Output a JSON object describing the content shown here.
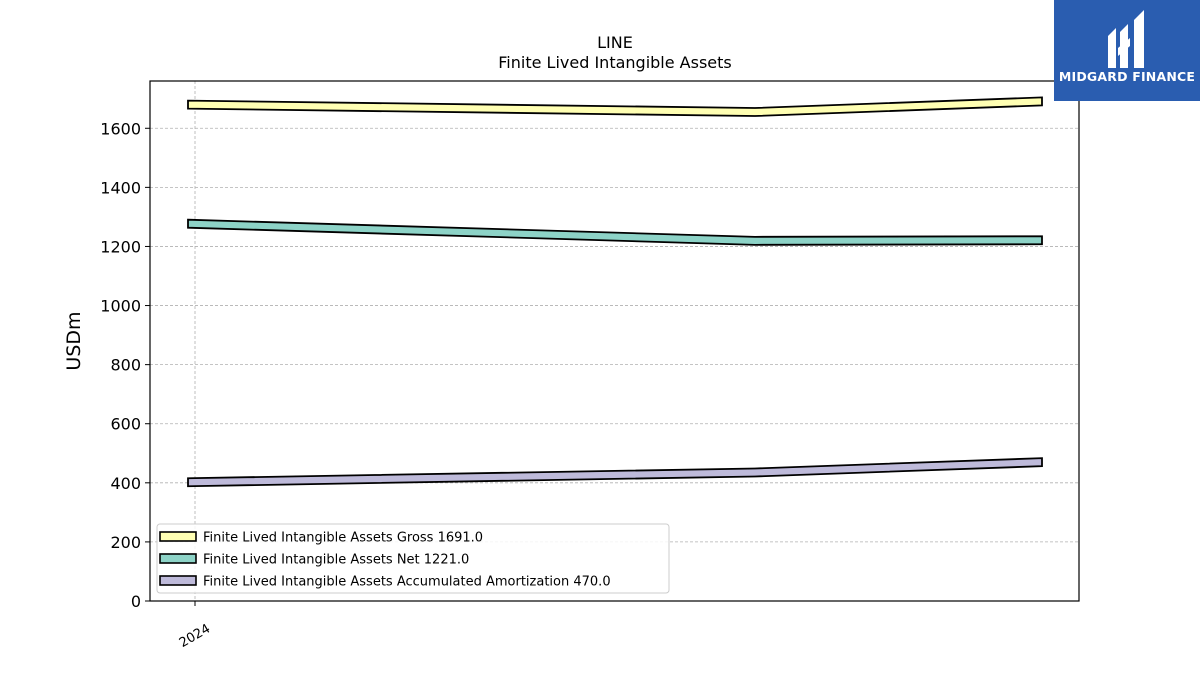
{
  "logo": {
    "text": "MIDGARD FINANCE",
    "bg_color": "#2a5db0"
  },
  "chart_data": {
    "type": "line",
    "title": "LINE",
    "subtitle": "Finite Lived Intangible Assets",
    "ylabel": "USDm",
    "xlabel": "",
    "x_tick_labels": [
      "2024"
    ],
    "ylim": [
      0,
      1760
    ],
    "yticks": [
      0,
      200,
      400,
      600,
      800,
      1000,
      1200,
      1400,
      1600
    ],
    "grid": true,
    "legend_position": "lower-left",
    "series": [
      {
        "name": "Finite Lived Intangible Assets Gross",
        "legend_label": "Finite Lived Intangible Assets Gross  1691.0",
        "color": "#ffffb3",
        "values": [
          1680,
          1655,
          1691
        ]
      },
      {
        "name": "Finite Lived Intangible Assets Net",
        "legend_label": "Finite Lived Intangible Assets Net  1221.0",
        "color": "#8dd3c7",
        "values": [
          1277,
          1219,
          1221
        ]
      },
      {
        "name": "Finite Lived Intangible Assets Accumulated Amortization",
        "legend_label": "Finite Lived Intangible Assets Accumulated Amortization  470.0",
        "color": "#bebada",
        "values": [
          402,
          435,
          470
        ]
      }
    ]
  }
}
